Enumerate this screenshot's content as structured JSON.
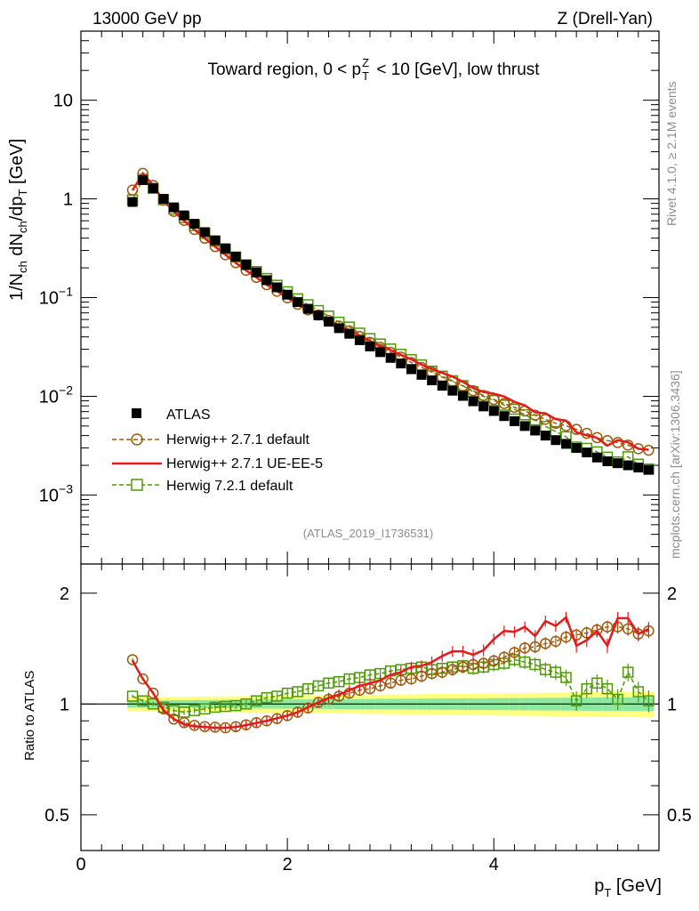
{
  "header": {
    "left": "13000 GeV pp",
    "right": "Z (Drell-Yan)"
  },
  "side": {
    "rivet": "Rivet 4.1.0, ≥ 2.1M events",
    "mcplots": "mcplots.cern.ch [arXiv:1306.3436]"
  },
  "chart_data": {
    "type": "scatter",
    "title": "Toward region, 0 < p_T^Z < 10 [GeV], low thrust",
    "analysis_id": "(ATLAS_2019_I1736531)",
    "xlabel": "p_T [GeV]",
    "ylabel": "1/N_ch dN_ch/dp_T [GeV]",
    "ratio_ylabel": "Ratio to ATLAS",
    "xlim": [
      0,
      5.6
    ],
    "ylim": [
      0.0002,
      50
    ],
    "ratio_ylim": [
      0.4,
      2.4
    ],
    "x_ticks": [
      "0",
      "2",
      "4"
    ],
    "y_ticks": [
      {
        "base": "10",
        "exp": "",
        "v": 10
      },
      {
        "base": "1",
        "exp": "",
        "v": 1
      },
      {
        "base": "10",
        "exp": "−1",
        "v": 0.1
      },
      {
        "base": "10",
        "exp": "−2",
        "v": 0.01
      },
      {
        "base": "10",
        "exp": "−3",
        "v": 0.001
      }
    ],
    "ratio_ticks": [
      {
        "label": "2",
        "v": 2
      },
      {
        "label": "1",
        "v": 1
      },
      {
        "label": "0.5",
        "v": 0.5
      }
    ],
    "x": [
      0.5,
      0.6,
      0.7,
      0.8,
      0.9,
      1.0,
      1.1,
      1.2,
      1.3,
      1.4,
      1.5,
      1.6,
      1.7,
      1.8,
      1.9,
      2.0,
      2.1,
      2.2,
      2.3,
      2.4,
      2.5,
      2.6,
      2.7,
      2.8,
      2.9,
      3.0,
      3.1,
      3.2,
      3.3,
      3.4,
      3.5,
      3.6,
      3.7,
      3.8,
      3.9,
      4.0,
      4.1,
      4.2,
      4.3,
      4.4,
      4.5,
      4.6,
      4.7,
      4.8,
      4.9,
      5.0,
      5.1,
      5.2,
      5.3,
      5.4,
      5.5
    ],
    "atlas_band_inner": 0.035,
    "atlas_band_outer": 0.065,
    "series": [
      {
        "name": "ATLAS",
        "values": [
          0.93,
          1.55,
          1.28,
          1.0,
          0.82,
          0.68,
          0.56,
          0.46,
          0.38,
          0.315,
          0.26,
          0.215,
          0.18,
          0.15,
          0.127,
          0.107,
          0.09,
          0.077,
          0.066,
          0.057,
          0.049,
          0.043,
          0.037,
          0.032,
          0.028,
          0.0245,
          0.0215,
          0.0188,
          0.0165,
          0.0145,
          0.0128,
          0.0114,
          0.0101,
          0.0089,
          0.0079,
          0.0071,
          0.0063,
          0.0056,
          0.005,
          0.0045,
          0.004,
          0.0036,
          0.0033,
          0.003,
          0.0027,
          0.0024,
          0.0022,
          0.0021,
          0.002,
          0.0019,
          0.0018
        ]
      },
      {
        "name": "Herwig++ 2.7.1 default",
        "ratio": [
          1.32,
          1.17,
          1.07,
          0.97,
          0.91,
          0.89,
          0.875,
          0.868,
          0.865,
          0.862,
          0.868,
          0.878,
          0.89,
          0.9,
          0.913,
          0.93,
          0.95,
          0.975,
          1.01,
          1.03,
          1.05,
          1.07,
          1.09,
          1.1,
          1.12,
          1.14,
          1.16,
          1.17,
          1.19,
          1.21,
          1.22,
          1.24,
          1.26,
          1.28,
          1.29,
          1.31,
          1.34,
          1.38,
          1.42,
          1.43,
          1.46,
          1.48,
          1.52,
          1.54,
          1.56,
          1.59,
          1.62,
          1.62,
          1.6,
          1.55,
          1.58
        ]
      },
      {
        "name": "Herwig++ 2.7.1 UE-EE-5",
        "ratio": [
          1.31,
          1.17,
          1.07,
          0.96,
          0.91,
          0.88,
          0.87,
          0.866,
          0.862,
          0.862,
          0.866,
          0.876,
          0.888,
          0.9,
          0.915,
          0.93,
          0.95,
          0.98,
          1.01,
          1.04,
          1.06,
          1.09,
          1.12,
          1.14,
          1.16,
          1.2,
          1.22,
          1.26,
          1.27,
          1.3,
          1.35,
          1.39,
          1.39,
          1.36,
          1.4,
          1.5,
          1.58,
          1.57,
          1.62,
          1.53,
          1.68,
          1.63,
          1.72,
          1.44,
          1.49,
          1.58,
          1.44,
          1.71,
          1.71,
          1.55,
          1.6
        ]
      },
      {
        "name": "Herwig 7.2.1 default",
        "ratio": [
          1.05,
          1.02,
          1.0,
          0.98,
          0.96,
          0.95,
          0.96,
          0.97,
          0.98,
          0.985,
          0.99,
          1.0,
          1.02,
          1.04,
          1.05,
          1.07,
          1.08,
          1.1,
          1.12,
          1.14,
          1.15,
          1.17,
          1.18,
          1.2,
          1.21,
          1.23,
          1.24,
          1.25,
          1.26,
          1.24,
          1.25,
          1.26,
          1.27,
          1.25,
          1.26,
          1.28,
          1.29,
          1.32,
          1.3,
          1.28,
          1.24,
          1.22,
          1.18,
          1.02,
          1.1,
          1.14,
          1.1,
          1.03,
          1.22,
          1.08,
          1.02
        ]
      }
    ]
  }
}
